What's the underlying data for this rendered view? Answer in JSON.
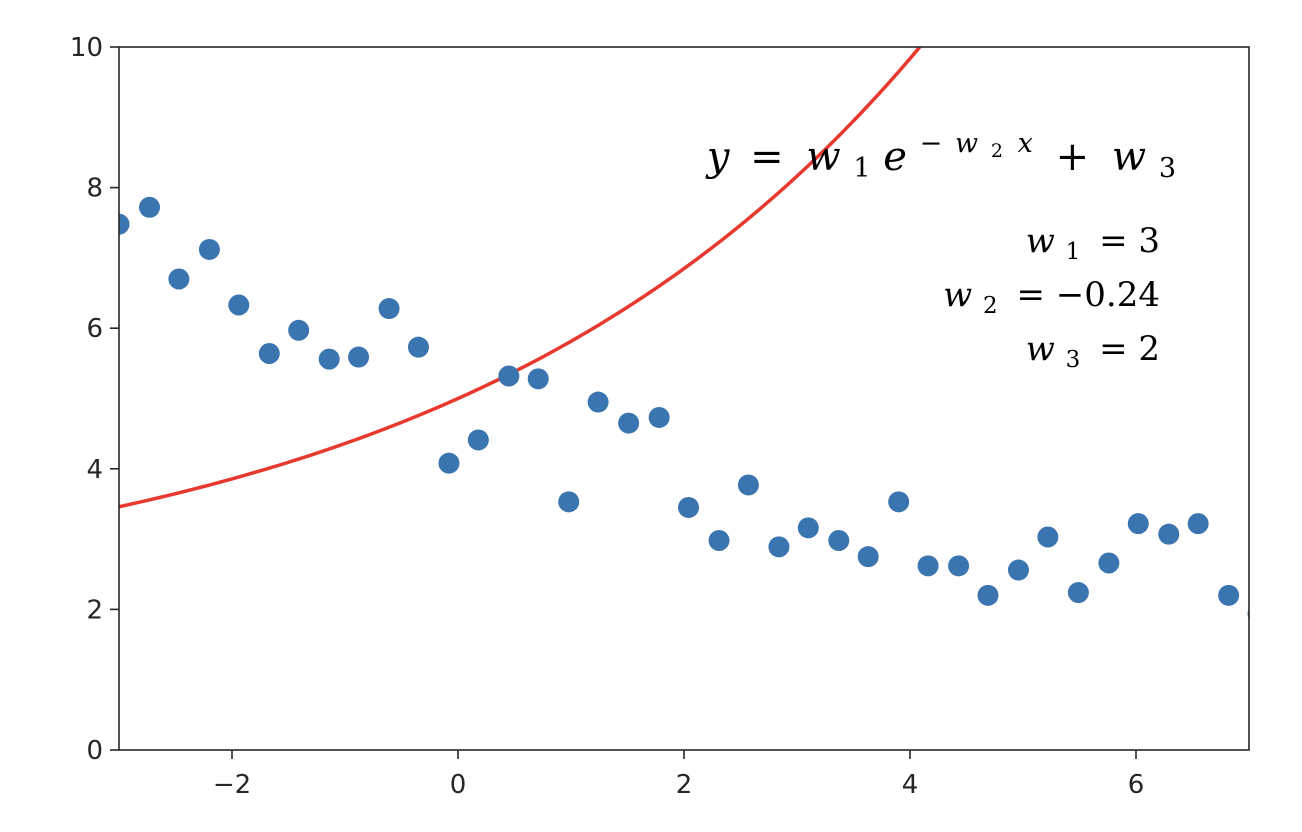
{
  "chart_data": {
    "type": "scatter",
    "xlim": [
      -3,
      7
    ],
    "ylim": [
      0,
      10
    ],
    "x_ticks": [
      -2,
      0,
      2,
      4,
      6
    ],
    "x_tick_labels": [
      "−2",
      "0",
      "2",
      "4",
      "6"
    ],
    "y_ticks": [
      0,
      2,
      4,
      6,
      8,
      10
    ],
    "y_tick_labels": [
      "0",
      "2",
      "4",
      "6",
      "8",
      "10"
    ],
    "grid": false,
    "series": [
      {
        "type": "scatter",
        "color": "#3a75b0",
        "points": [
          [
            -3.0,
            7.48
          ],
          [
            -2.73,
            7.72
          ],
          [
            -2.47,
            6.7
          ],
          [
            -2.2,
            7.12
          ],
          [
            -1.94,
            6.33
          ],
          [
            -1.67,
            5.64
          ],
          [
            -1.41,
            5.97
          ],
          [
            -1.14,
            5.56
          ],
          [
            -0.88,
            5.59
          ],
          [
            -0.61,
            6.28
          ],
          [
            -0.35,
            5.73
          ],
          [
            -0.08,
            4.08
          ],
          [
            0.18,
            4.41
          ],
          [
            0.45,
            5.32
          ],
          [
            0.71,
            5.28
          ],
          [
            0.98,
            3.53
          ],
          [
            1.24,
            4.95
          ],
          [
            1.51,
            4.65
          ],
          [
            1.78,
            4.73
          ],
          [
            2.04,
            3.45
          ],
          [
            2.31,
            2.98
          ],
          [
            2.57,
            3.77
          ],
          [
            2.84,
            2.89
          ],
          [
            3.1,
            3.16
          ],
          [
            3.37,
            2.98
          ],
          [
            3.63,
            2.75
          ],
          [
            3.9,
            3.53
          ],
          [
            4.16,
            2.62
          ],
          [
            4.43,
            2.62
          ],
          [
            4.69,
            2.2
          ],
          [
            4.96,
            2.56
          ],
          [
            5.22,
            3.03
          ],
          [
            5.49,
            2.24
          ],
          [
            5.76,
            2.66
          ],
          [
            6.02,
            3.22
          ],
          [
            6.29,
            3.07
          ],
          [
            6.55,
            3.22
          ],
          [
            6.82,
            2.2
          ],
          [
            7.08,
            1.94
          ]
        ]
      },
      {
        "type": "line",
        "color": "#e8392f",
        "function": "w1*exp(-w2*x)+w3",
        "params": {
          "w1": 3,
          "w2": -0.24,
          "w3": 2
        }
      }
    ],
    "annotations": {
      "equation": {
        "y": "y",
        "eq": "=",
        "w1": "w",
        "w1_sub": "1",
        "e": "e",
        "exp_minus": "−",
        "exp_w": "w",
        "exp_sub": "2",
        "exp_x": "x",
        "plus": "+",
        "w3": "w",
        "w3_sub": "3"
      },
      "params": [
        {
          "w": "w",
          "sub": "1",
          "rhs": "= 3"
        },
        {
          "w": "w",
          "sub": "2",
          "rhs": "= −0.24"
        },
        {
          "w": "w",
          "sub": "3",
          "rhs": "= 2"
        }
      ]
    }
  }
}
